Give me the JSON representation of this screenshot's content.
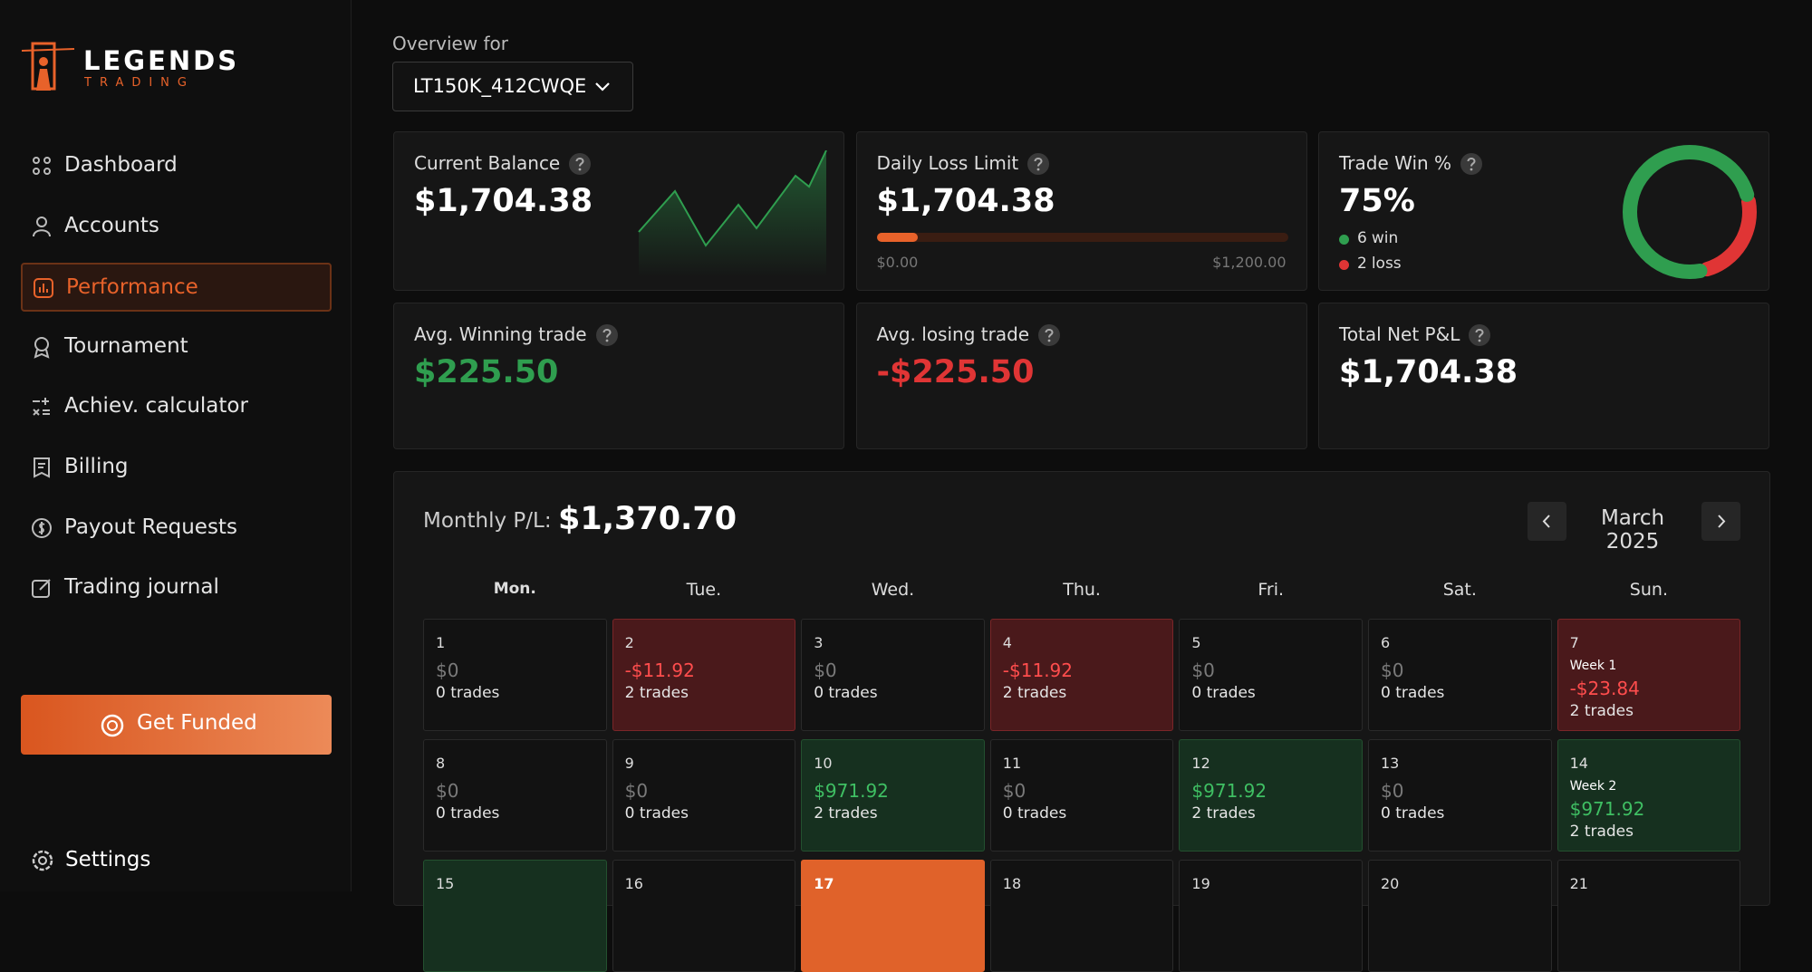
{
  "brand": {
    "name": "LEGENDS",
    "tagline": "TRADING"
  },
  "nav": {
    "items": [
      "Dashboard",
      "Accounts",
      "Performance",
      "Tournament",
      "Achiev. calculator",
      "Billing",
      "Payout Requests",
      "Trading journal"
    ],
    "active": 2
  },
  "cta": "Get Funded",
  "settings": "Settings",
  "overview": {
    "label": "Overview for",
    "account": "LT150K_412CWQE"
  },
  "cards": [
    {
      "title": "Current Balance",
      "value": "$1,704.38"
    },
    {
      "title": "Daily Loss Limit",
      "value": "$1,704.38",
      "range": [
        "$0.00",
        "$1,200.00"
      ]
    },
    {
      "title": "Trade Win %",
      "value": "75%",
      "wins": {
        "count": 6,
        "label": "win"
      },
      "losses": {
        "count": 2,
        "label": "loss"
      }
    },
    {
      "title": "Avg. Winning trade",
      "value": "$225.50",
      "tone": "positive"
    },
    {
      "title": "Avg. losing trade",
      "value": "-$225.50",
      "tone": "negative"
    },
    {
      "title": "Total Net P&L",
      "value": "$1,704.38"
    }
  ],
  "calendar": {
    "label": "Monthly P/L:",
    "total": "$1,370.70",
    "month": "March 2025",
    "weekdays": [
      "Mon.",
      "Tue.",
      "Wed.",
      "Thu.",
      "Fri.",
      "Sat.",
      "Sun."
    ],
    "days": [
      {
        "day": 1,
        "pnl": "$0",
        "trades": "0 trades",
        "status": "flat"
      },
      {
        "day": 2,
        "pnl": "-$11.92",
        "trades": "2 trades",
        "status": "loss"
      },
      {
        "day": 3,
        "pnl": "$0",
        "trades": "0 trades",
        "status": "flat"
      },
      {
        "day": 4,
        "pnl": "-$11.92",
        "trades": "2 trades",
        "status": "loss"
      },
      {
        "day": 5,
        "pnl": "$0",
        "trades": "0 trades",
        "status": "flat"
      },
      {
        "day": 6,
        "pnl": "$0",
        "trades": "0 trades",
        "status": "flat"
      },
      {
        "day": 7,
        "week": "Week 1",
        "pnl": "-$23.84",
        "trades": "2 trades",
        "status": "loss"
      },
      {
        "day": 8,
        "pnl": "$0",
        "trades": "0 trades",
        "status": "flat"
      },
      {
        "day": 9,
        "pnl": "$0",
        "trades": "0 trades",
        "status": "flat"
      },
      {
        "day": 10,
        "pnl": "$971.92",
        "trades": "2 trades",
        "status": "win"
      },
      {
        "day": 11,
        "pnl": "$0",
        "trades": "0 trades",
        "status": "flat"
      },
      {
        "day": 12,
        "pnl": "$971.92",
        "trades": "2 trades",
        "status": "win"
      },
      {
        "day": 13,
        "pnl": "$0",
        "trades": "0 trades",
        "status": "flat"
      },
      {
        "day": 14,
        "week": "Week 2",
        "pnl": "$971.92",
        "trades": "2 trades",
        "status": "win"
      },
      {
        "day": 15,
        "status": "win"
      },
      {
        "day": 16,
        "status": "flat"
      },
      {
        "day": 17,
        "status": "today"
      },
      {
        "day": 18,
        "status": "flat"
      },
      {
        "day": 19,
        "status": "flat"
      },
      {
        "day": 20,
        "status": "flat"
      },
      {
        "day": 21,
        "status": "flat"
      }
    ]
  }
}
